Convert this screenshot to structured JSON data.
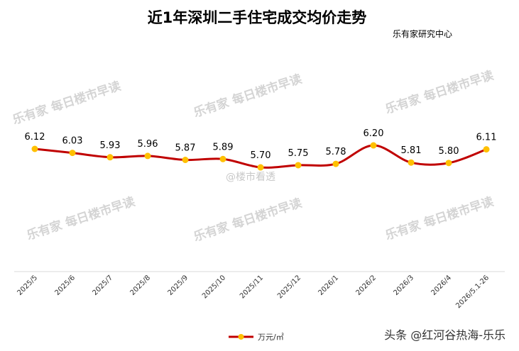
{
  "chart_data": {
    "type": "line",
    "title": "近1年深圳二手住宅成交均价走势",
    "source": "乐有家研究中心",
    "categories": [
      "2025/5",
      "2025/6",
      "2025/7",
      "2025/8",
      "2025/9",
      "2025/10",
      "2025/11",
      "2025/12",
      "2026/1",
      "2026/2",
      "2026/3",
      "2026/4",
      "2026/5.1-26"
    ],
    "series": [
      {
        "name": "万元/㎡",
        "values": [
          6.12,
          6.03,
          5.93,
          5.96,
          5.87,
          5.89,
          5.7,
          5.75,
          5.78,
          6.2,
          5.81,
          5.8,
          6.11
        ],
        "labels": [
          "6.12",
          "6.03",
          "5.93",
          "5.96",
          "5.87",
          "5.89",
          "5.70",
          "5.75",
          "5.78",
          "6.20",
          "5.81",
          "5.80",
          "6.11"
        ]
      }
    ],
    "grid": false,
    "legend_position": "bottom",
    "colors": {
      "line": "#c00000",
      "marker": "#ffc000",
      "title": "#000000"
    }
  },
  "watermarks": {
    "brand": "乐有家",
    "text": "每日楼市早读",
    "weibo": "@楼市看透",
    "footer": "头条 @红河谷热海-乐乐"
  }
}
